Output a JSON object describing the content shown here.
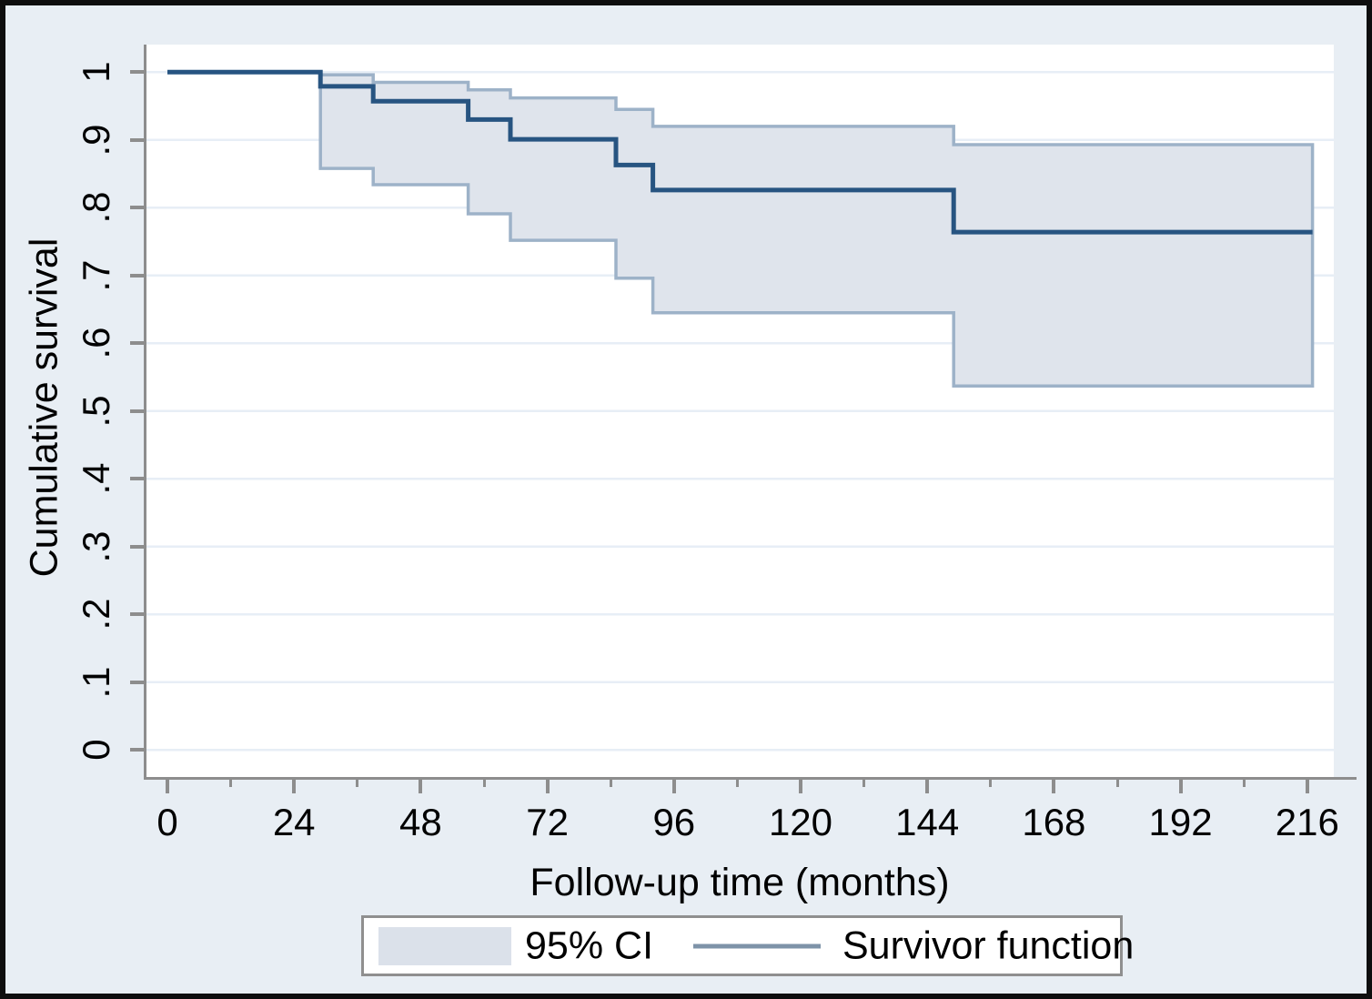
{
  "figure": {
    "x_axis": {
      "title": "Follow-up time (months)",
      "ticks": [
        {
          "label": "0",
          "value": 0
        },
        {
          "label": "24",
          "value": 24
        },
        {
          "label": "48",
          "value": 48
        },
        {
          "label": "72",
          "value": 72
        },
        {
          "label": "96",
          "value": 96
        },
        {
          "label": "120",
          "value": 120
        },
        {
          "label": "144",
          "value": 144
        },
        {
          "label": "168",
          "value": 168
        },
        {
          "label": "192",
          "value": 192
        },
        {
          "label": "216",
          "value": 216
        }
      ],
      "minor_ticks": [
        12,
        36,
        60,
        84,
        108,
        132,
        156,
        180,
        204
      ]
    },
    "y_axis": {
      "title": "Cumulative survival",
      "ticks": [
        {
          "label": "0",
          "value": 0
        },
        {
          "label": ".1",
          "value": 0.1
        },
        {
          "label": ".2",
          "value": 0.2
        },
        {
          "label": ".3",
          "value": 0.3
        },
        {
          "label": ".4",
          "value": 0.4
        },
        {
          "label": ".5",
          "value": 0.5
        },
        {
          "label": ".6",
          "value": 0.6
        },
        {
          "label": ".7",
          "value": 0.7
        },
        {
          "label": ".8",
          "value": 0.8
        },
        {
          "label": ".9",
          "value": 0.9
        },
        {
          "label": "1",
          "value": 1
        }
      ]
    },
    "legend": {
      "ci_label": "95% CI",
      "line_label": "Survivor function"
    },
    "colors": {
      "outer_background": "#e8eef4",
      "plot_background": "#ffffff",
      "frame": "#0e0e0e",
      "axis": "#8d8d8d",
      "gridline": "#e7eef6",
      "survivor_line": "#275481",
      "ci_fill": "#dfe4ec",
      "ci_edge": "#9db2c8",
      "legend_line": "#7e93a8",
      "legend_swatch": "#dbe1ea"
    }
  },
  "chart_data": {
    "type": "line",
    "subtype": "kaplan-meier-step",
    "title": "",
    "xlabel": "Follow-up time (months)",
    "ylabel": "Cumulative survival",
    "xlim": [
      0,
      216
    ],
    "ylim": [
      0,
      1
    ],
    "grid": "horizontal",
    "legend_position": "bottom",
    "series": [
      {
        "name": "Survivor function",
        "style": "step-after",
        "x": [
          0,
          29,
          39,
          57,
          65,
          85,
          92,
          149,
          217
        ],
        "y": [
          1.0,
          0.979,
          0.957,
          0.93,
          0.901,
          0.863,
          0.826,
          0.764,
          0.764
        ]
      },
      {
        "name": "95% CI upper",
        "style": "step-after",
        "x": [
          29,
          39,
          57,
          65,
          85,
          92,
          149,
          217
        ],
        "y": [
          0.996,
          0.985,
          0.974,
          0.962,
          0.945,
          0.92,
          0.893,
          0.893
        ]
      },
      {
        "name": "95% CI lower",
        "style": "step-after",
        "x": [
          29,
          39,
          57,
          65,
          85,
          92,
          149,
          217
        ],
        "y": [
          0.858,
          0.834,
          0.791,
          0.752,
          0.696,
          0.645,
          0.537,
          0.537
        ]
      }
    ]
  }
}
